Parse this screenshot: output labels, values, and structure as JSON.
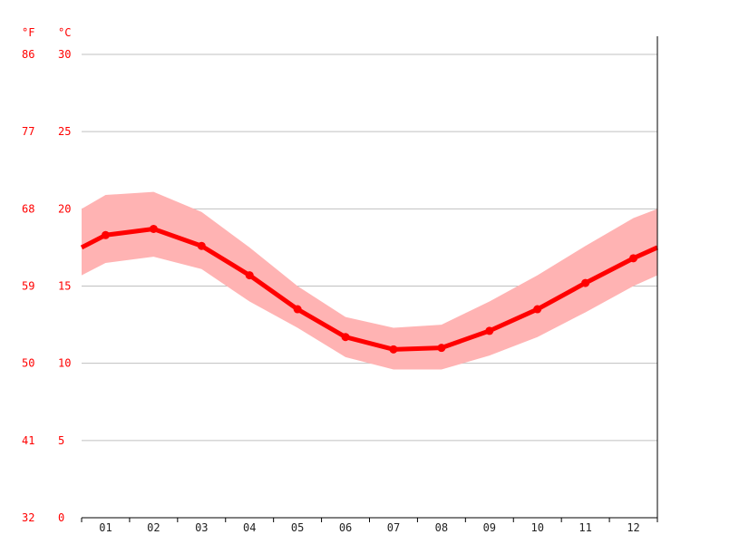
{
  "chart_data": {
    "type": "line",
    "categories": [
      "01",
      "02",
      "03",
      "04",
      "05",
      "06",
      "07",
      "08",
      "09",
      "10",
      "11",
      "12"
    ],
    "series": [
      {
        "values": [
          18.3,
          18.7,
          17.6,
          15.7,
          13.5,
          11.7,
          10.9,
          11.0,
          12.1,
          13.5,
          15.2,
          16.8
        ],
        "min": [
          16.5,
          16.9,
          16.1,
          14.0,
          12.3,
          10.4,
          9.6,
          9.6,
          10.5,
          11.7,
          13.3,
          15.0
        ],
        "max": [
          20.9,
          21.1,
          19.8,
          17.5,
          15.0,
          13.0,
          12.3,
          12.5,
          14.0,
          15.7,
          17.6,
          19.4
        ],
        "start": {
          "value": 17.5,
          "min": 15.7,
          "max": 20.0
        },
        "end": {
          "value": 17.5,
          "min": 15.7,
          "max": 20.0
        }
      }
    ],
    "y_left_unit": "°F",
    "y_right_unit": "°C",
    "celsius_ticks": [
      "0",
      "5",
      "10",
      "15",
      "20",
      "25",
      "30"
    ],
    "fahrenheit_ticks": [
      "32",
      "41",
      "50",
      "59",
      "68",
      "77",
      "86"
    ],
    "ylim": [
      0,
      30
    ],
    "grid": true,
    "colors": {
      "line": "#ff0000",
      "band": "#ffb3b3",
      "grid": "#c0c0c0",
      "axis_label": "#ff0000",
      "axis": "#000000"
    }
  }
}
